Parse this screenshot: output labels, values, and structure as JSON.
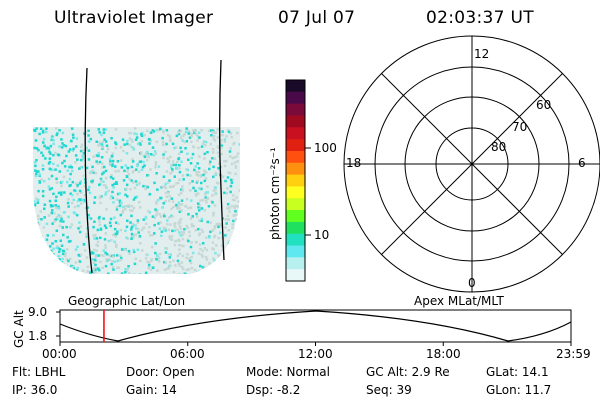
{
  "header": {
    "title": "Ultraviolet Imager",
    "date": "07 Jul 07",
    "time": "02:03:37 UT"
  },
  "colorbar": {
    "unit_label": "photon cm⁻²s⁻¹",
    "ticks": [
      "100",
      "10"
    ],
    "colors": [
      "#1a0a2a",
      "#4a0a4a",
      "#7a0a3a",
      "#a00a20",
      "#c81020",
      "#e02010",
      "#ff5010",
      "#ff9010",
      "#ffd010",
      "#ffff20",
      "#c8ff20",
      "#60ff20",
      "#20e060",
      "#20e0c0",
      "#60e8f0",
      "#b8f0f0",
      "#e8f8f8"
    ]
  },
  "polar": {
    "mlt_labels": [
      "12",
      "18",
      "6",
      "0"
    ],
    "lat_labels": [
      "60",
      "70",
      "80"
    ]
  },
  "timeline": {
    "axis_label": "GC Alt",
    "y_labels": [
      "9.0",
      "1.8"
    ],
    "left_caption": "Geographic Lat/Lon",
    "right_caption": "Apex MLat/MLT",
    "x_ticks": [
      "00:00",
      "06:00",
      "12:00",
      "18:00",
      "23:59"
    ],
    "cursor_time_fraction": 0.086
  },
  "info": {
    "flt": "Flt: LBHL",
    "ip": "IP: 36.0",
    "door": "Door: Open",
    "gain": "Gain: 14",
    "mode": "Mode: Normal",
    "dsp": "Dsp:    -8.2",
    "gcalt": "GC Alt: 2.9 Re",
    "seq": "Seq: 39",
    "glat": "GLat:   14.1",
    "glon": "GLon:   11.7"
  }
}
